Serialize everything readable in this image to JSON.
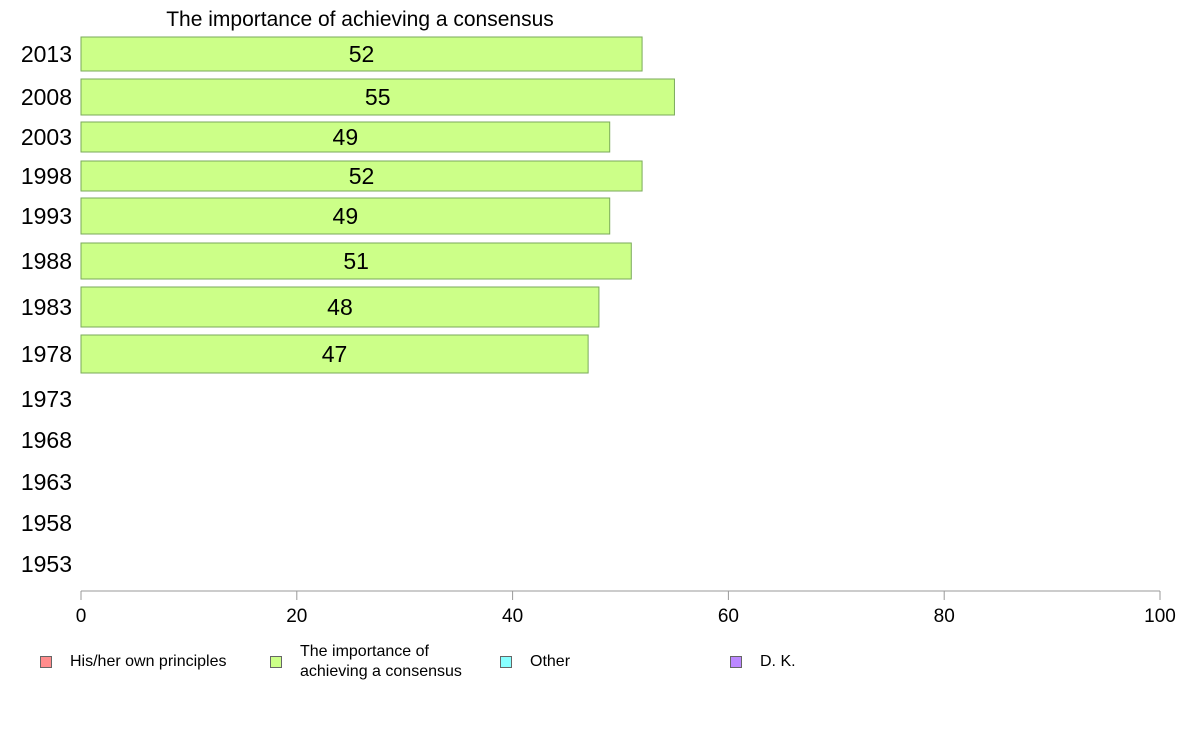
{
  "chart_data": {
    "type": "bar",
    "orientation": "horizontal",
    "title": "The importance of achieving a consensus",
    "categories": [
      "2013",
      "2008",
      "2003",
      "1998",
      "1993",
      "1988",
      "1983",
      "1978",
      "1973",
      "1968",
      "1963",
      "1958",
      "1953"
    ],
    "series": [
      {
        "name": "The importance of achieving a consensus",
        "values": [
          52,
          55,
          49,
          52,
          49,
          51,
          48,
          47,
          null,
          null,
          null,
          null,
          null
        ],
        "labels": [
          "52",
          "55",
          "49",
          "52",
          "49",
          "51",
          "48",
          "47",
          "",
          "",
          "",
          "",
          ""
        ],
        "color": "#ccff88"
      }
    ],
    "xlim": [
      0,
      100
    ],
    "xticks": [
      "0",
      "20",
      "40",
      "60",
      "80",
      "100"
    ],
    "xlabel": "",
    "ylabel": "",
    "grid": false,
    "legend_position": "bottom"
  },
  "legend": {
    "items": [
      {
        "label": "His/her own principles",
        "color": "#ff8c8c"
      },
      {
        "label": "The importance of\nachieving a consensus",
        "color": "#ccff88"
      },
      {
        "label": "Other",
        "color": "#88ffff"
      },
      {
        "label": "D. K.",
        "color": "#bb88ff"
      }
    ]
  },
  "colors": {
    "bar_stroke": "#7aaa5a",
    "axis": "#999999"
  }
}
